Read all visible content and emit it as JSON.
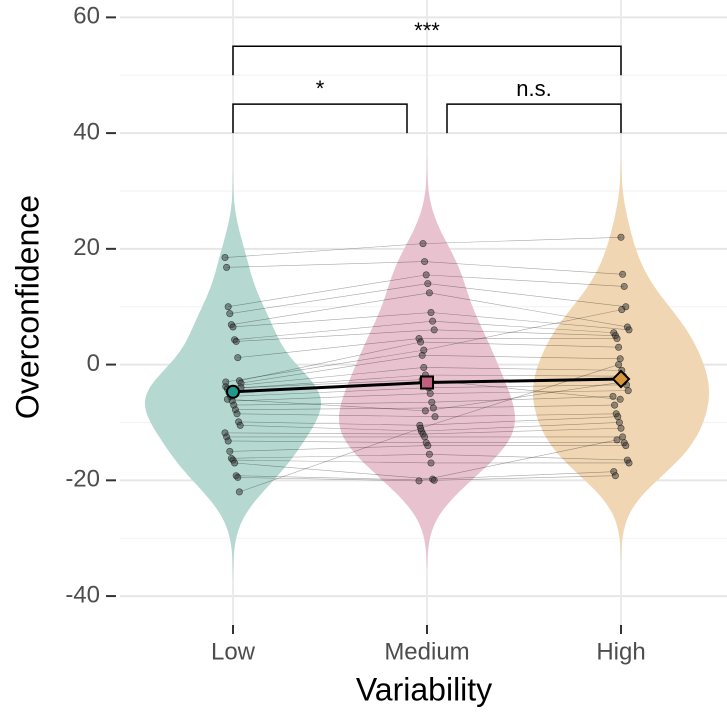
{
  "chart_data": {
    "type": "violin",
    "x_label": "Variability",
    "y_label": "Overconfidence",
    "categories": [
      "Low",
      "Medium",
      "High"
    ],
    "violin_colors": [
      "#b5d8d1",
      "#e8c3cf",
      "#f0d6b3"
    ],
    "mean_colors": [
      "#21998a",
      "#c4607f",
      "#d9963a"
    ],
    "mean_shapes": [
      "circle",
      "square",
      "diamond"
    ],
    "means": [
      -4.7,
      -3.1,
      -2.5
    ],
    "points": [
      [
        18.5,
        16.8,
        10,
        8.8,
        6.9,
        6.5,
        4.3,
        4,
        1.2,
        -2.8,
        -3.2,
        -3.8,
        -4.2,
        -4.8,
        -5.5,
        -6.3,
        -7,
        -7.8,
        -8.5,
        -9.9,
        -10.5,
        -11.8,
        -12.5,
        -13.2,
        -15,
        -16.2,
        -16.5,
        -17,
        -19.2,
        -19.5,
        -22,
        -4,
        -3,
        -6
      ],
      [
        20.9,
        17.8,
        15.5,
        14,
        12.4,
        9,
        7.5,
        6,
        4.5,
        3.9,
        1.6,
        -0.5,
        -1.8,
        -3,
        -4,
        -5,
        -6.5,
        -7.5,
        -9,
        -10.5,
        -11.5,
        -12,
        -12.5,
        -13.5,
        -14,
        -15.5,
        -17,
        -19.8,
        -20,
        -20.1,
        -11,
        -2.6,
        2.5,
        -8
      ],
      [
        22,
        15.6,
        13.5,
        10,
        6.5,
        6,
        5.5,
        5,
        4.5,
        3,
        1,
        -1,
        -2,
        -2.5,
        -3.5,
        -4.5,
        -5.5,
        -7,
        -8.5,
        -9,
        -10,
        -11,
        -12.5,
        -13.5,
        -14,
        -16.5,
        -17,
        -18.5,
        -19.2,
        -13,
        0,
        -6,
        9.5,
        -3
      ]
    ],
    "comparisons": [
      {
        "from": 0,
        "to": 1,
        "label": "*",
        "y": 45
      },
      {
        "from": 1,
        "to": 2,
        "label": "n.s.",
        "y": 45
      },
      {
        "from": 0,
        "to": 2,
        "label": "***",
        "y": 55
      }
    ],
    "ylim": [
      -45,
      63
    ],
    "yticks": [
      -40,
      -20,
      0,
      20,
      40,
      60
    ],
    "grid": true
  }
}
